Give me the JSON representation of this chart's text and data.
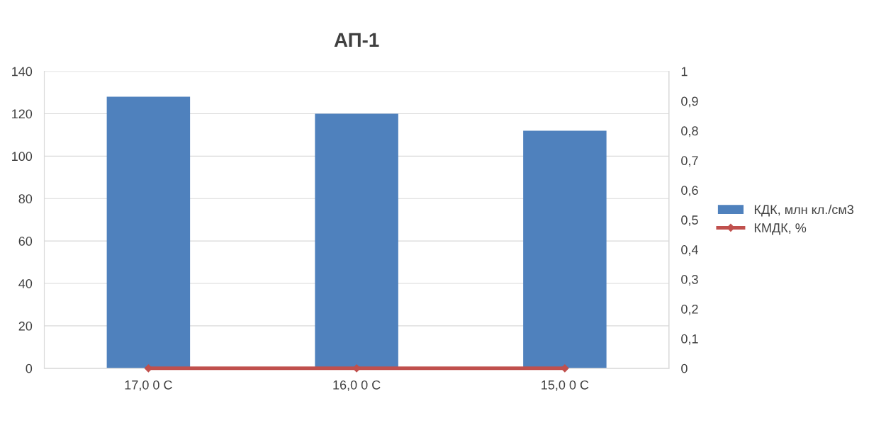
{
  "chart_data": {
    "type": "bar",
    "title": "АП-1",
    "categories": [
      "17,0 0 C",
      "16,0 0 C",
      "15,0 0 C"
    ],
    "series": [
      {
        "name": "КДК, млн кл./см3",
        "color": "#4f81bd",
        "values": [
          128,
          120,
          112
        ]
      },
      {
        "name": "КМДК, %",
        "type": "line",
        "color": "#c0504d",
        "axis": "y2",
        "marker": "diamond",
        "values": [
          0,
          0,
          0
        ]
      }
    ],
    "ylim": [
      0,
      140
    ],
    "yticks": [
      0,
      20,
      40,
      60,
      80,
      100,
      120,
      140
    ],
    "y2lim": [
      0,
      1
    ],
    "y2ticks": [
      0,
      {
        "value": 0.1,
        "label": "0,1"
      },
      {
        "value": 0.2,
        "label": "0,2"
      },
      {
        "value": 0.3,
        "label": "0,3"
      },
      {
        "value": 0.4,
        "label": "0,4"
      },
      {
        "value": 0.5,
        "label": "0,5"
      },
      {
        "value": 0.6,
        "label": "0,6"
      },
      {
        "value": 0.7,
        "label": "0,7"
      },
      {
        "value": 0.8,
        "label": "0,8"
      },
      {
        "value": 0.9,
        "label": "0,9"
      },
      1
    ],
    "grid": "y",
    "legend": "right"
  }
}
